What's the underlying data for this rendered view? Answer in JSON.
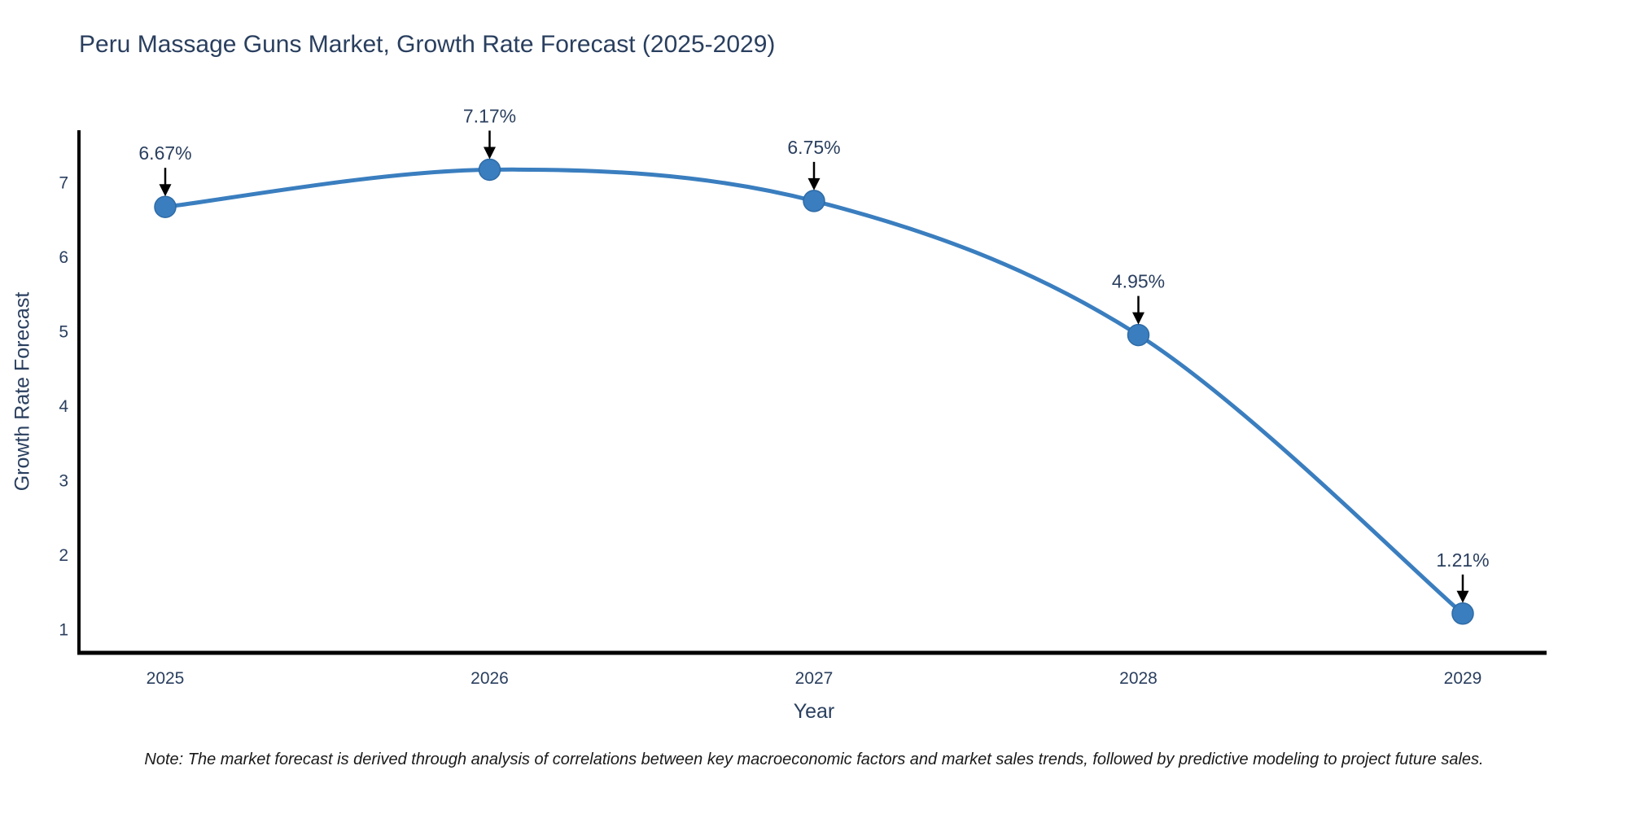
{
  "title": "Peru Massage Guns Market, Growth Rate Forecast (2025-2029)",
  "note": "Note: The market forecast is derived through analysis of correlations between key macroeconomic factors and market sales trends, followed by predictive modeling to project future sales.",
  "chart_data": {
    "type": "line",
    "title": "Peru Massage Guns Market, Growth Rate Forecast (2025-2029)",
    "x": [
      2025,
      2026,
      2027,
      2028,
      2029
    ],
    "values": [
      6.67,
      7.17,
      6.75,
      4.95,
      1.21
    ],
    "point_labels": [
      "6.67%",
      "7.17%",
      "6.75%",
      "4.95%",
      "1.21%"
    ],
    "xlabel": "Year",
    "ylabel": "Growth Rate Forecast",
    "xticks": [
      "2025",
      "2026",
      "2027",
      "2028",
      "2029"
    ],
    "yticks": [
      1,
      2,
      3,
      4,
      5,
      6,
      7
    ],
    "ylim": [
      0.68,
      7.7
    ],
    "line_shape": "spline",
    "grid": false,
    "legend": "none",
    "colors": {
      "line": "#3a7ebf",
      "marker": "#3a7ebf",
      "marker_edge": "#2e6ba6",
      "axis": "#000000",
      "tick_text": "#2a3f5f",
      "annotation_text": "#2a3f5f",
      "annotation_arrow": "#000000",
      "background": "#ffffff"
    }
  }
}
